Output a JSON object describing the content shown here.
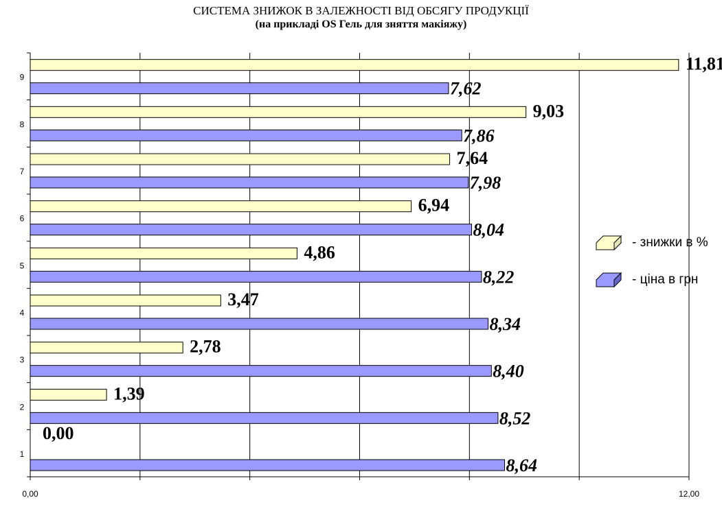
{
  "chart_data": {
    "type": "bar",
    "orientation": "horizontal",
    "title": "СИСТЕМА ЗНИЖОК В ЗАЛЕЖНОСТІ ВІД ОБСЯГУ ПРОДУКЦІЇ",
    "subtitle": "(на прикладі OS Гель для зняття макіяжу)",
    "categories": [
      "1",
      "2",
      "3",
      "4",
      "5",
      "6",
      "7",
      "8",
      "9"
    ],
    "x_ticks": [
      "0,00",
      "12,00"
    ],
    "xlim": [
      0,
      12
    ],
    "grid": true,
    "legend_position": "right",
    "series": [
      {
        "name": "- знижки в %",
        "color": "#ffffcc",
        "values": [
          0.0,
          1.39,
          2.78,
          3.47,
          4.86,
          6.94,
          7.64,
          9.03,
          11.81
        ],
        "labels": [
          "0,00",
          "1,39",
          "2,78",
          "3,47",
          "4,86",
          "6,94",
          "7,64",
          "9,03",
          "11,81"
        ]
      },
      {
        "name": "- ціна в грн",
        "color": "#9999ff",
        "values": [
          8.64,
          8.52,
          8.4,
          8.34,
          8.22,
          8.04,
          7.98,
          7.86,
          7.62
        ],
        "labels": [
          "8,64",
          "8,52",
          "8,40",
          "8,34",
          "8,22",
          "8,04",
          "7,98",
          "7,86",
          "7,62"
        ]
      }
    ]
  }
}
